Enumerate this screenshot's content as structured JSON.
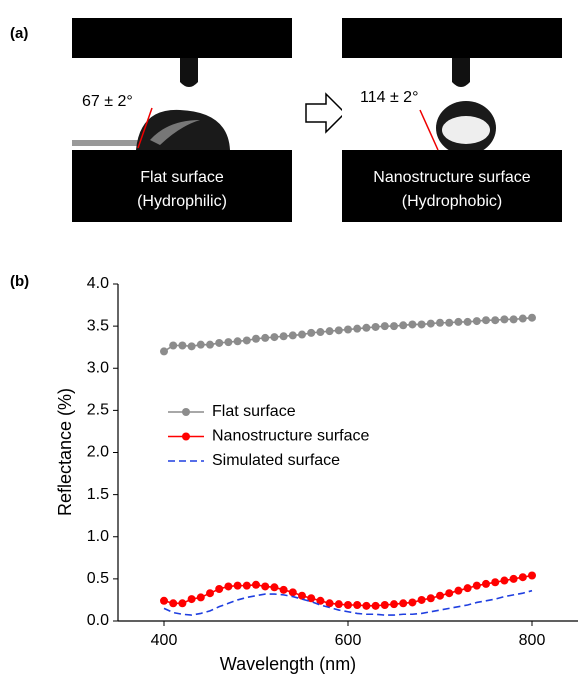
{
  "panel_a": {
    "label": "(a)",
    "left": {
      "angle": "67 ± 2°",
      "line1": "Flat surface",
      "line2": "(Hydrophilic)"
    },
    "right": {
      "angle": "114 ± 2°",
      "line1": "Nanostructure surface",
      "line2": "(Hydrophobic)"
    }
  },
  "panel_b": {
    "label": "(b)"
  },
  "chart_data": {
    "type": "line",
    "x_label": "Wavelength (nm)",
    "y_label": "Reflectance (%)",
    "x": [
      400,
      410,
      420,
      430,
      440,
      450,
      460,
      470,
      480,
      490,
      500,
      510,
      520,
      530,
      540,
      550,
      560,
      570,
      580,
      590,
      600,
      610,
      620,
      630,
      640,
      650,
      660,
      670,
      680,
      690,
      700,
      710,
      720,
      730,
      740,
      750,
      760,
      770,
      780,
      790,
      800
    ],
    "series": [
      {
        "name": "Flat surface",
        "color": "#8c8c8c",
        "marker": "circle",
        "dash": false,
        "values": [
          3.2,
          3.27,
          3.27,
          3.26,
          3.28,
          3.28,
          3.3,
          3.31,
          3.32,
          3.33,
          3.35,
          3.36,
          3.37,
          3.38,
          3.39,
          3.4,
          3.42,
          3.43,
          3.44,
          3.45,
          3.46,
          3.47,
          3.48,
          3.49,
          3.5,
          3.5,
          3.51,
          3.52,
          3.52,
          3.53,
          3.54,
          3.54,
          3.55,
          3.55,
          3.56,
          3.57,
          3.57,
          3.58,
          3.58,
          3.59,
          3.6
        ]
      },
      {
        "name": "Nanostructure surface",
        "color": "#ff0000",
        "marker": "circle",
        "dash": false,
        "values": [
          0.24,
          0.21,
          0.21,
          0.26,
          0.28,
          0.33,
          0.38,
          0.41,
          0.42,
          0.42,
          0.43,
          0.41,
          0.4,
          0.37,
          0.34,
          0.3,
          0.27,
          0.24,
          0.21,
          0.2,
          0.19,
          0.19,
          0.18,
          0.18,
          0.19,
          0.2,
          0.21,
          0.22,
          0.25,
          0.27,
          0.3,
          0.33,
          0.36,
          0.39,
          0.42,
          0.44,
          0.46,
          0.48,
          0.5,
          0.52,
          0.54
        ]
      },
      {
        "name": "Simulated surface",
        "color": "#1f3fe0",
        "marker": "none",
        "dash": true,
        "values": [
          0.15,
          0.1,
          0.08,
          0.07,
          0.09,
          0.12,
          0.17,
          0.21,
          0.25,
          0.28,
          0.3,
          0.32,
          0.32,
          0.31,
          0.29,
          0.26,
          0.23,
          0.19,
          0.16,
          0.13,
          0.11,
          0.09,
          0.08,
          0.08,
          0.07,
          0.07,
          0.08,
          0.08,
          0.09,
          0.11,
          0.13,
          0.15,
          0.17,
          0.19,
          0.22,
          0.24,
          0.26,
          0.29,
          0.31,
          0.33,
          0.36
        ]
      }
    ],
    "xlim": [
      350,
      850
    ],
    "xticks": [
      400,
      600,
      800
    ],
    "ylim": [
      0,
      4
    ],
    "yticks": [
      {
        "value": 0,
        "label": "0.0"
      },
      0.5,
      {
        "value": 1,
        "label": "1.0"
      },
      1.5,
      {
        "value": 2,
        "label": "2.0"
      },
      2.5,
      {
        "value": 3,
        "label": "3.0"
      },
      3.5,
      {
        "value": 4,
        "label": "4.0"
      }
    ],
    "legend": "left",
    "grid": false
  }
}
